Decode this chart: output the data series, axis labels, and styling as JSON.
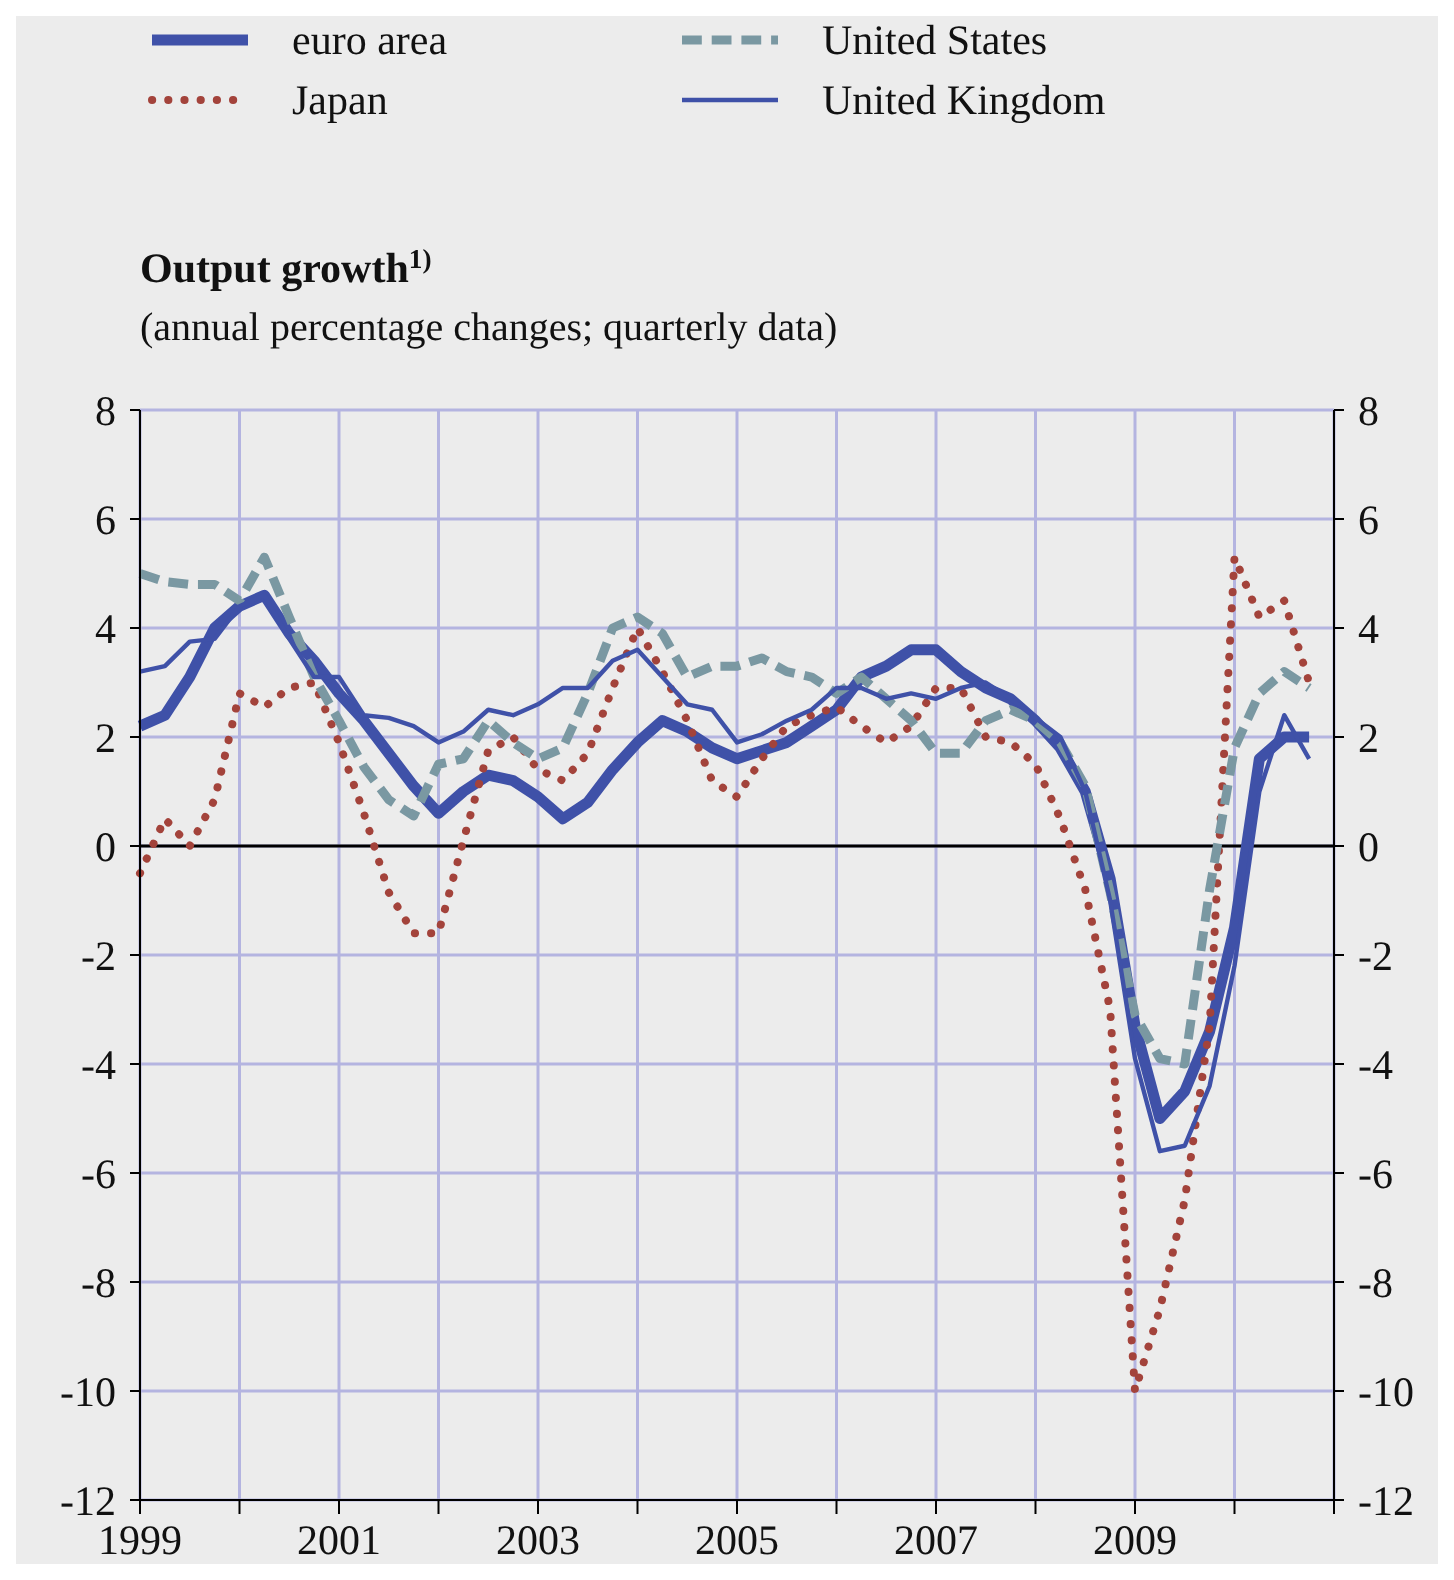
{
  "chart_data": {
    "type": "line",
    "title": "Output growth$^{1)}$",
    "subtitle": "(annual percentage changes; quarterly data)",
    "x": [
      1999,
      1999.25,
      1999.5,
      1999.75,
      2000,
      2000.25,
      2000.5,
      2000.75,
      2001,
      2001.25,
      2001.5,
      2001.75,
      2002,
      2002.25,
      2002.5,
      2002.75,
      2003,
      2003.25,
      2003.5,
      2003.75,
      2004,
      2004.25,
      2004.5,
      2004.75,
      2005,
      2005.25,
      2005.5,
      2005.75,
      2006,
      2006.25,
      2006.5,
      2006.75,
      2007,
      2007.25,
      2007.5,
      2007.75,
      2008,
      2008.25,
      2008.5,
      2008.75,
      2009,
      2009.25,
      2009.5,
      2009.75,
      2010,
      2010.25,
      2010.5,
      2010.75
    ],
    "series": [
      {
        "name": "euro area",
        "color": "#3f51a8",
        "line_style": "solid",
        "values": [
          2.2,
          2.4,
          3.1,
          4.0,
          4.4,
          4.6,
          3.9,
          3.4,
          2.8,
          2.3,
          1.7,
          1.1,
          0.6,
          1.0,
          1.3,
          1.2,
          0.9,
          0.5,
          0.8,
          1.4,
          1.9,
          2.3,
          2.1,
          1.8,
          1.6,
          1.75,
          1.9,
          2.2,
          2.5,
          3.1,
          3.3,
          3.6,
          3.6,
          3.2,
          2.9,
          2.7,
          2.3,
          1.8,
          1.0,
          -0.6,
          -3.3,
          -5.0,
          -4.5,
          -3.4,
          -1.5,
          1.6,
          2.0,
          2.0
        ]
      },
      {
        "name": "Japan",
        "color": "#a3433b",
        "line_style": "dotted",
        "values": [
          -0.5,
          0.5,
          0.0,
          0.85,
          2.8,
          2.55,
          2.9,
          3.0,
          1.9,
          0.6,
          -0.85,
          -1.6,
          -1.6,
          0.1,
          1.75,
          2.0,
          1.4,
          1.2,
          1.7,
          2.9,
          4.0,
          3.2,
          2.3,
          1.2,
          0.9,
          1.6,
          2.2,
          2.4,
          2.55,
          2.2,
          1.9,
          2.2,
          2.9,
          2.9,
          2.0,
          1.9,
          1.5,
          0.5,
          -0.8,
          -3.0,
          -10.0,
          -8.5,
          -6.5,
          -3.3,
          5.3,
          4.2,
          4.5,
          3.0
        ]
      },
      {
        "name": "United States",
        "color": "#7a98a2",
        "line_style": "dashed",
        "values": [
          5.0,
          4.85,
          4.8,
          4.8,
          4.5,
          5.3,
          4.2,
          3.1,
          2.3,
          1.45,
          0.85,
          0.55,
          1.5,
          1.6,
          2.3,
          1.9,
          1.6,
          1.8,
          2.8,
          4.0,
          4.2,
          3.9,
          3.1,
          3.3,
          3.3,
          3.45,
          3.2,
          3.1,
          2.8,
          3.1,
          2.7,
          2.3,
          1.7,
          1.7,
          2.3,
          2.5,
          2.3,
          1.9,
          1.1,
          -0.85,
          -3.1,
          -3.9,
          -4.0,
          -0.8,
          1.8,
          2.8,
          3.2,
          2.9
        ]
      },
      {
        "name": "United Kingdom",
        "color": "#3f51a8",
        "line_style": "solid",
        "values": [
          3.2,
          3.3,
          3.75,
          3.8,
          4.4,
          4.6,
          3.8,
          3.1,
          3.1,
          2.4,
          2.35,
          2.2,
          1.9,
          2.1,
          2.5,
          2.4,
          2.6,
          2.9,
          2.9,
          3.4,
          3.6,
          3.1,
          2.6,
          2.5,
          1.9,
          2.05,
          2.3,
          2.5,
          2.9,
          2.9,
          2.7,
          2.8,
          2.7,
          2.9,
          3.0,
          2.7,
          2.35,
          2.0,
          1.0,
          -1.0,
          -3.9,
          -5.6,
          -5.5,
          -4.4,
          -2.2,
          1.0,
          2.4,
          1.6
        ]
      }
    ],
    "xlim": [
      1999,
      2011
    ],
    "xticks": [
      1999,
      {
        "value": 2000,
        "label": null
      },
      2001,
      {
        "value": 2002,
        "label": null
      },
      2003,
      {
        "value": 2004,
        "label": null
      },
      2005,
      {
        "value": 2006,
        "label": null
      },
      2007,
      {
        "value": 2008,
        "label": null
      },
      2009,
      {
        "value": 2010,
        "label": null
      },
      {
        "value": 2011,
        "label": null
      }
    ],
    "ylim": [
      -12,
      8
    ],
    "yticks": [
      -12,
      -10,
      -8,
      -6,
      -4,
      -2,
      0,
      2,
      4,
      6,
      8
    ],
    "y2lim": [
      -12,
      8
    ],
    "y2ticks": [
      -12,
      -10,
      -8,
      -6,
      -4,
      -2,
      0,
      2,
      4,
      6,
      8
    ],
    "ref_lines": [
      {
        "axis": "y",
        "value": 0,
        "color": "#000000"
      }
    ],
    "grid": true,
    "legend": "top left",
    "marker": "none"
  }
}
